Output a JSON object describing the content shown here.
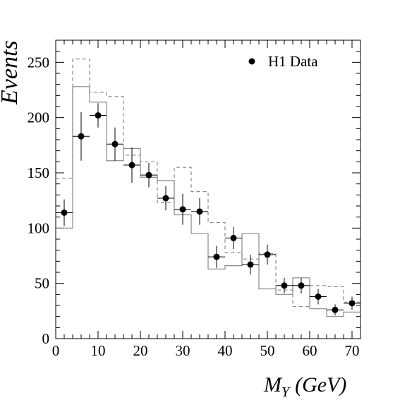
{
  "chart_data": {
    "type": "scatter",
    "title": "",
    "xlabel": "M_Y (GeV)",
    "xlabel_main": "M",
    "xlabel_sub": "Y",
    "xlabel_unit": "(GeV)",
    "ylabel": "Events",
    "xlim": [
      0,
      72
    ],
    "ylim": [
      0,
      270
    ],
    "xticks": [
      "0",
      "10",
      "20",
      "30",
      "40",
      "50",
      "60",
      "70"
    ],
    "yticks": [
      "0",
      "50",
      "100",
      "150",
      "200",
      "250"
    ],
    "grid": false,
    "legend_position": "top-right",
    "bin_edges": [
      0,
      4,
      8,
      12,
      16,
      20,
      24,
      28,
      32,
      36,
      40,
      44,
      48,
      52,
      56,
      60,
      64,
      68,
      72
    ],
    "series": [
      {
        "name": "H1 Data",
        "style": "markers-with-error-bars",
        "x": [
          2,
          6,
          10,
          14,
          18,
          22,
          26,
          30,
          34,
          38,
          42,
          46,
          50,
          54,
          58,
          62,
          66,
          70
        ],
        "y": [
          114,
          183,
          202,
          176,
          157,
          148,
          127,
          117,
          115,
          74,
          91,
          67,
          76,
          48,
          48,
          38,
          26,
          32
        ],
        "yerr": [
          12,
          22,
          11,
          15,
          16,
          11,
          11,
          14,
          12,
          10,
          10,
          9,
          9,
          7,
          7,
          7,
          5,
          6
        ]
      },
      {
        "style": "solid-step",
        "color": "#888888",
        "values": [
          100,
          228,
          214,
          161,
          172,
          146,
          143,
          112,
          95,
          63,
          66,
          95,
          45,
          40,
          55,
          27,
          20,
          24
        ]
      },
      {
        "style": "dashed-step",
        "color": "#888888",
        "values": [
          145,
          253,
          223,
          219,
          166,
          160,
          123,
          155,
          133,
          105,
          78,
          72,
          77,
          44,
          29,
          48,
          47,
          33
        ]
      }
    ]
  }
}
